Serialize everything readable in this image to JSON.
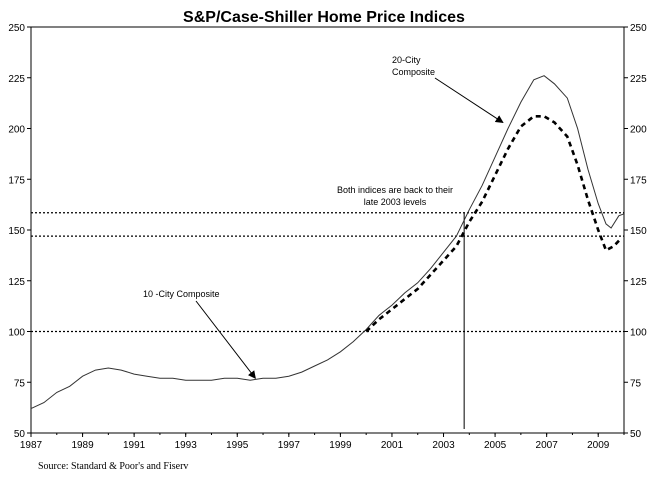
{
  "chart_data": {
    "type": "line",
    "title": "S&P/Case-Shiller Home Price Indices",
    "source": "Source: Standard & Poor's and Fiserv",
    "xlim": [
      1987,
      2010
    ],
    "ylim": [
      50,
      250
    ],
    "x_ticks": [
      "1987",
      "1989",
      "1991",
      "1993",
      "1995",
      "1997",
      "1999",
      "2001",
      "2003",
      "2005",
      "2007",
      "2009"
    ],
    "y_ticks": [
      "50",
      "75",
      "100",
      "125",
      "150",
      "175",
      "200",
      "225",
      "250"
    ],
    "grid": false,
    "series": [
      {
        "name": "10 -City Composite",
        "style": "solid",
        "points": [
          [
            1987.0,
            62
          ],
          [
            1987.5,
            65
          ],
          [
            1988.0,
            70
          ],
          [
            1988.5,
            73
          ],
          [
            1989.0,
            78
          ],
          [
            1989.5,
            81
          ],
          [
            1990.0,
            82
          ],
          [
            1990.5,
            81
          ],
          [
            1991.0,
            79
          ],
          [
            1991.5,
            78
          ],
          [
            1992.0,
            77
          ],
          [
            1992.5,
            77
          ],
          [
            1993.0,
            76
          ],
          [
            1993.5,
            76
          ],
          [
            1994.0,
            76
          ],
          [
            1994.5,
            77
          ],
          [
            1995.0,
            77
          ],
          [
            1995.5,
            76
          ],
          [
            1996.0,
            77
          ],
          [
            1996.5,
            77
          ],
          [
            1997.0,
            78
          ],
          [
            1997.5,
            80
          ],
          [
            1998.0,
            83
          ],
          [
            1998.5,
            86
          ],
          [
            1999.0,
            90
          ],
          [
            1999.5,
            95
          ],
          [
            2000.0,
            101
          ],
          [
            2000.5,
            108
          ],
          [
            2001.0,
            113
          ],
          [
            2001.5,
            119
          ],
          [
            2002.0,
            124
          ],
          [
            2002.5,
            131
          ],
          [
            2003.0,
            139
          ],
          [
            2003.5,
            147
          ],
          [
            2004.0,
            160
          ],
          [
            2004.5,
            172
          ],
          [
            2005.0,
            186
          ],
          [
            2005.5,
            200
          ],
          [
            2006.0,
            213
          ],
          [
            2006.5,
            224
          ],
          [
            2006.9,
            226
          ],
          [
            2007.3,
            222
          ],
          [
            2007.8,
            215
          ],
          [
            2008.2,
            200
          ],
          [
            2008.6,
            180
          ],
          [
            2009.0,
            163
          ],
          [
            2009.3,
            153
          ],
          [
            2009.5,
            151
          ],
          [
            2009.8,
            157
          ],
          [
            2010.0,
            158
          ]
        ]
      },
      {
        "name": "20-City Composite",
        "style": "dotted",
        "points": [
          [
            2000.0,
            100
          ],
          [
            2000.5,
            106
          ],
          [
            2001.0,
            111
          ],
          [
            2001.5,
            116
          ],
          [
            2002.0,
            121
          ],
          [
            2002.5,
            128
          ],
          [
            2003.0,
            135
          ],
          [
            2003.5,
            142
          ],
          [
            2004.0,
            154
          ],
          [
            2004.5,
            164
          ],
          [
            2005.0,
            177
          ],
          [
            2005.5,
            190
          ],
          [
            2006.0,
            201
          ],
          [
            2006.5,
            206
          ],
          [
            2006.9,
            206
          ],
          [
            2007.3,
            203
          ],
          [
            2007.8,
            196
          ],
          [
            2008.2,
            182
          ],
          [
            2008.6,
            165
          ],
          [
            2009.0,
            150
          ],
          [
            2009.3,
            140
          ],
          [
            2009.6,
            142
          ],
          [
            2009.9,
            146
          ]
        ]
      }
    ],
    "reference_lines": [
      {
        "y": 100,
        "style": "dotted"
      },
      {
        "y": 147,
        "style": "dotted"
      },
      {
        "y": 158.5,
        "style": "dotted"
      }
    ],
    "annotations": [
      {
        "text_lines": [
          "20-City",
          "Composite"
        ],
        "arrow_to": [
          2005.3,
          203
        ]
      },
      {
        "text_lines": [
          "10 -City Composite"
        ],
        "arrow_to": [
          1995.7,
          77
        ]
      },
      {
        "text_lines": [
          "Both indices are back to their",
          "late 2003 levels"
        ]
      }
    ],
    "marker_line_x": 2003.8
  }
}
